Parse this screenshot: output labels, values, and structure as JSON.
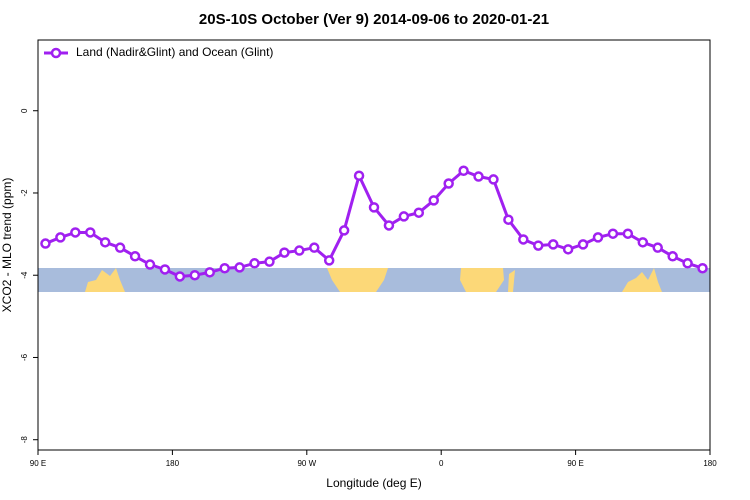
{
  "chart_data": {
    "type": "line",
    "title": "20S-10S October (Ver 9)   2014-09-06 to 2020-01-21",
    "x_label": "Longitude (deg E)",
    "y_label": "XCO2 - MLO trend (ppm)",
    "x": [
      95,
      105,
      115,
      125,
      135,
      145,
      155,
      165,
      175,
      185,
      195,
      205,
      215,
      225,
      235,
      245,
      255,
      265,
      275,
      285,
      295,
      305,
      315,
      325,
      335,
      345,
      355,
      365,
      375,
      385,
      395,
      405,
      415,
      425,
      435,
      445,
      455,
      465,
      475,
      485,
      495,
      505,
      515,
      525,
      535
    ],
    "series": [
      {
        "name": "Land (Nadir&Glint) and Ocean (Glint)",
        "color": "#a020f0",
        "values": [
          -3.23,
          -3.08,
          -2.96,
          -2.96,
          -3.2,
          -3.33,
          -3.54,
          -3.74,
          -3.86,
          -4.03,
          -4.0,
          -3.93,
          -3.83,
          -3.81,
          -3.71,
          -3.67,
          -3.45,
          -3.4,
          -3.33,
          -3.64,
          -2.91,
          -1.58,
          -2.35,
          -2.79,
          -2.57,
          -2.48,
          -2.18,
          -1.77,
          -1.46,
          -1.6,
          -1.67,
          -2.65,
          -3.13,
          -3.28,
          -3.25,
          -3.37,
          -3.25,
          -3.08,
          -2.99,
          -2.99,
          -3.2,
          -3.33,
          -3.54,
          -3.71,
          -3.83
        ]
      }
    ],
    "xlim": [
      90,
      540
    ],
    "xticks": [
      {
        "value": 90,
        "label": "90 E"
      },
      {
        "value": 180,
        "label": "180"
      },
      {
        "value": 270,
        "label": "90 W"
      },
      {
        "value": 360,
        "label": "0"
      },
      {
        "value": 450,
        "label": "90 E"
      },
      {
        "value": 540,
        "label": "180"
      }
    ],
    "ylim": [
      -8.25,
      1.72
    ],
    "yticks": [
      0,
      -2,
      -4,
      -6,
      -8
    ],
    "legend": "top-left"
  }
}
